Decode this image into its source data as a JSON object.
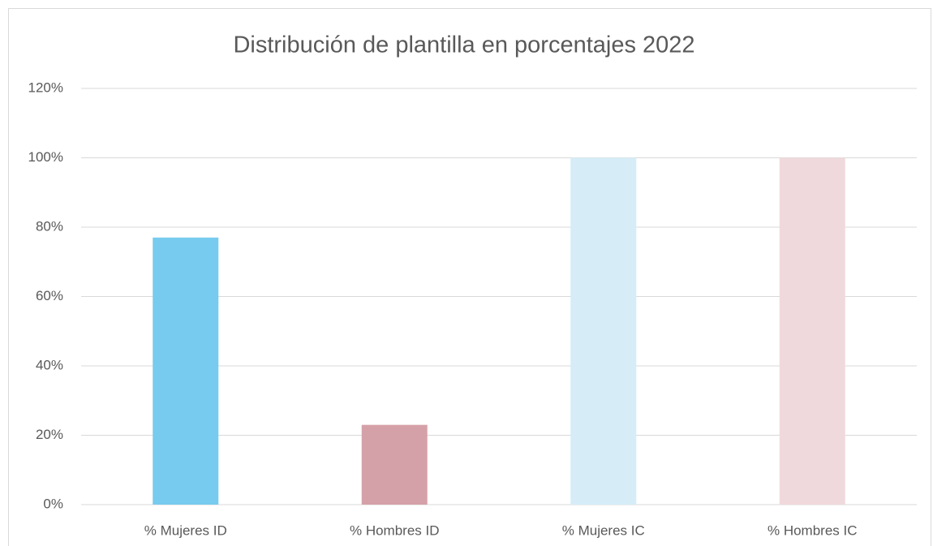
{
  "chart_data": {
    "type": "bar",
    "title": "Distribución de plantilla en porcentajes 2022",
    "categories": [
      "% Mujeres ID",
      "% Hombres ID",
      "% Mujeres IC",
      "% Hombres IC"
    ],
    "values": [
      77,
      23,
      100,
      100
    ],
    "colors": [
      "#77cbee",
      "#d5a1a8",
      "#d6edf8",
      "#f0d9dc"
    ],
    "ylim": [
      0,
      120
    ],
    "yticks": [
      {
        "value": 0,
        "label": "0%"
      },
      {
        "value": 20,
        "label": "20%"
      },
      {
        "value": 40,
        "label": "40%"
      },
      {
        "value": 60,
        "label": "60%"
      },
      {
        "value": 80,
        "label": "80%"
      },
      {
        "value": 100,
        "label": "100%"
      },
      {
        "value": 120,
        "label": "120%"
      }
    ],
    "grid": true
  }
}
